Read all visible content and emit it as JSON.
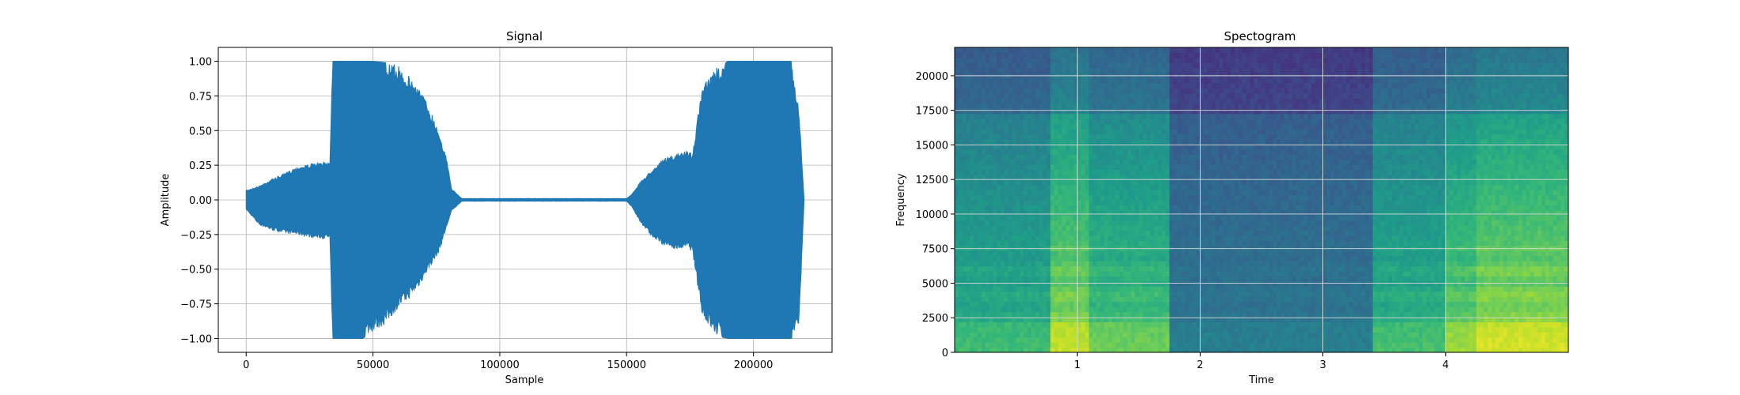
{
  "chart_data": [
    {
      "type": "line",
      "title": "Signal",
      "xlabel": "Sample",
      "ylabel": "Amplitude",
      "xlim": [
        -11000,
        231000
      ],
      "ylim": [
        -1.1,
        1.1
      ],
      "grid": true,
      "color": "#1f77b4",
      "xticks": [
        0,
        50000,
        100000,
        150000,
        200000
      ],
      "xtick_labels": [
        "0",
        "50000",
        "100000",
        "150000",
        "200000"
      ],
      "yticks": [
        1.0,
        0.75,
        0.5,
        0.25,
        0.0,
        -0.25,
        -0.5,
        -0.75,
        -1.0
      ],
      "ytick_labels": [
        "1.00",
        "0.75",
        "0.50",
        "0.25",
        "0.00",
        "−0.25",
        "−0.50",
        "−0.75",
        "−1.00"
      ],
      "series": [
        {
          "envelope_x": [
            0,
            5000,
            10000,
            15000,
            20000,
            25000,
            30000,
            33000,
            34000,
            38000,
            42000,
            46000,
            50000,
            55000,
            60000,
            64000,
            68000,
            72000,
            76000,
            79000,
            81000,
            85000,
            100000,
            120000,
            140000,
            150000,
            152000,
            155000,
            160000,
            165000,
            170000,
            174000,
            176000,
            178000,
            180000,
            185000,
            190000,
            200000,
            210000,
            215000,
            218000,
            220000
          ],
          "envelope_y": [
            0.07,
            0.1,
            0.15,
            0.19,
            0.24,
            0.26,
            0.27,
            0.28,
            1.0,
            1.0,
            1.0,
            1.0,
            1.0,
            0.99,
            0.97,
            0.9,
            0.82,
            0.68,
            0.5,
            0.3,
            0.08,
            0.01,
            0.01,
            0.01,
            0.01,
            0.01,
            0.04,
            0.12,
            0.22,
            0.3,
            0.33,
            0.36,
            0.33,
            0.6,
            0.82,
            0.95,
            1.0,
            1.0,
            1.0,
            1.0,
            0.65,
            0.0
          ],
          "envelope_y_low": [
            -0.07,
            -0.18,
            -0.22,
            -0.24,
            -0.25,
            -0.27,
            -0.28,
            -0.28,
            -1.0,
            -1.0,
            -1.0,
            -1.0,
            -0.95,
            -0.9,
            -0.78,
            -0.72,
            -0.63,
            -0.5,
            -0.38,
            -0.2,
            -0.08,
            -0.01,
            -0.01,
            -0.01,
            -0.01,
            -0.01,
            -0.05,
            -0.15,
            -0.27,
            -0.33,
            -0.36,
            -0.34,
            -0.38,
            -0.62,
            -0.85,
            -0.98,
            -1.0,
            -1.0,
            -1.0,
            -1.0,
            -0.9,
            0.0
          ]
        }
      ]
    },
    {
      "type": "heatmap",
      "title": "Spectogram",
      "xlabel": "Time",
      "ylabel": "Frequency",
      "xlim": [
        0.0,
        5.0
      ],
      "ylim": [
        0,
        22050
      ],
      "grid": true,
      "colormap": "viridis",
      "xticks": [
        1,
        2,
        3,
        4
      ],
      "xtick_labels": [
        "1",
        "2",
        "3",
        "4"
      ],
      "yticks": [
        0,
        2500,
        5000,
        7500,
        10000,
        12500,
        15000,
        17500,
        20000
      ],
      "ytick_labels": [
        "0",
        "2500",
        "5000",
        "7500",
        "10000",
        "12500",
        "15000",
        "17500",
        "20000"
      ],
      "time_segments": [
        {
          "start": 0.0,
          "end": 0.78,
          "level": 0.6
        },
        {
          "start": 0.78,
          "end": 1.1,
          "level": 0.85
        },
        {
          "start": 1.1,
          "end": 1.75,
          "level": 0.7
        },
        {
          "start": 1.75,
          "end": 3.4,
          "level": 0.32
        },
        {
          "start": 3.4,
          "end": 4.0,
          "level": 0.62
        },
        {
          "start": 4.0,
          "end": 4.25,
          "level": 0.78
        },
        {
          "start": 4.25,
          "end": 5.0,
          "level": 0.88
        }
      ]
    }
  ]
}
